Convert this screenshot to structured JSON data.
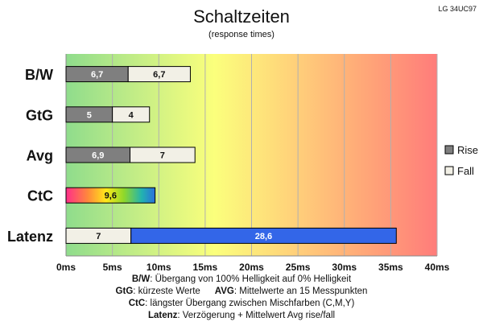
{
  "chart_data": {
    "type": "bar",
    "orientation": "horizontal",
    "stacked": true,
    "title": "Schaltzeiten",
    "subtitle": "(response times)",
    "corner_label": "LG 34UC97",
    "categories": [
      "B/W",
      "GtG",
      "Avg",
      "CtC",
      "Latenz"
    ],
    "series": [
      {
        "name": "Rise",
        "values": [
          6.7,
          5,
          6.9,
          null,
          null
        ],
        "labels": [
          "6,7",
          "5",
          "6,9",
          "",
          ""
        ],
        "color": "#7f7f7f"
      },
      {
        "name": "Fall",
        "values": [
          6.7,
          4,
          7,
          null,
          7
        ],
        "labels": [
          "6,7",
          "4",
          "7",
          "",
          "7"
        ],
        "color": "#f2f0e6"
      },
      {
        "name": "",
        "values": [
          null,
          null,
          null,
          9.6,
          null
        ],
        "labels": [
          "",
          "",
          "",
          "9,6",
          ""
        ],
        "color": "gradient"
      },
      {
        "name": "",
        "values": [
          null,
          null,
          null,
          null,
          28.6
        ],
        "labels": [
          "",
          "",
          "",
          "",
          "28,6"
        ],
        "color": "#3366e8"
      }
    ],
    "xlim": [
      0,
      40
    ],
    "xticks": [
      "0ms",
      "5ms",
      "10ms",
      "15ms",
      "20ms",
      "25ms",
      "30ms",
      "35ms",
      "40ms"
    ],
    "legend_position": "right",
    "legend": [
      "Rise",
      "Fall"
    ],
    "grid": true,
    "background": "gradient green-yellow-red"
  },
  "footer": {
    "line1_key": "B/W",
    "line1_text": ":  Übergang von 100% Helligkeit auf 0% Helligkeit",
    "line2a_key": "GtG",
    "line2a_text": ": kürzeste  Werte",
    "line2b_key": "AVG",
    "line2b_text": ": Mittelwerte  an 15 Messpunkten",
    "line3_key": "CtC",
    "line3_text": ": längster Übergang  zwischen Mischfarben (C,M,Y)",
    "line4_key": "Latenz",
    "line4_text": ": Verzögerung  + Mittelwert  Avg rise/fall"
  }
}
